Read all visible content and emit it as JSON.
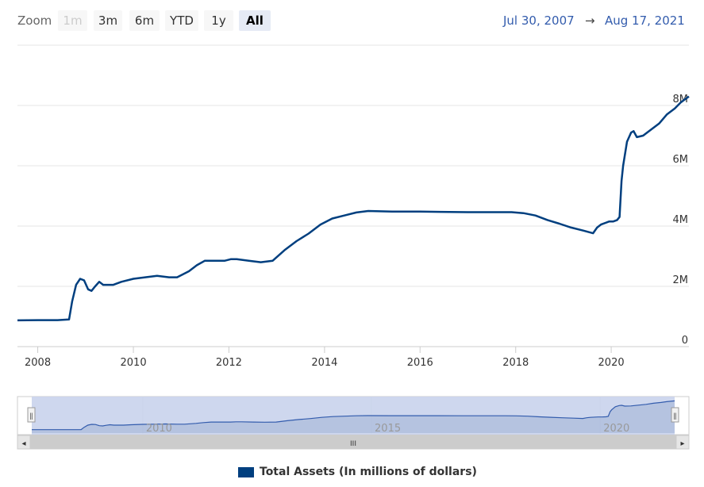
{
  "range_selector": {
    "zoom_label": "Zoom",
    "buttons": [
      {
        "label": "1m",
        "state": "disabled"
      },
      {
        "label": "3m",
        "state": "normal"
      },
      {
        "label": "6m",
        "state": "normal"
      },
      {
        "label": "YTD",
        "state": "normal"
      },
      {
        "label": "1y",
        "state": "normal"
      },
      {
        "label": "All",
        "state": "active"
      }
    ],
    "from_date": "Jul 30, 2007",
    "arrow": "→",
    "to_date": "Aug 17, 2021"
  },
  "navigator": {
    "tick_labels": [
      "2010",
      "2015",
      "2020"
    ],
    "handle_glyph": "ǁ",
    "scrollbar_grip": "III",
    "left_arrow": "◂",
    "right_arrow": "▸"
  },
  "colors": {
    "series": "#003f7f",
    "accent": "#335cad",
    "navigator_fill": "#c9d3ec"
  },
  "chart_data": {
    "type": "line",
    "series": [
      {
        "name": "Total Assets (In millions of dollars)",
        "x": [
          "2007-07-30",
          "2008-01-01",
          "2008-06-01",
          "2008-08-27",
          "2008-09-20",
          "2008-10-20",
          "2008-11-20",
          "2008-12-20",
          "2009-01-20",
          "2009-02-15",
          "2009-03-15",
          "2009-04-15",
          "2009-05-15",
          "2009-06-15",
          "2009-08-01",
          "2009-10-01",
          "2010-01-01",
          "2010-04-01",
          "2010-07-01",
          "2010-10-01",
          "2010-12-01",
          "2011-03-01",
          "2011-05-01",
          "2011-07-01",
          "2011-09-01",
          "2011-12-01",
          "2012-01-15",
          "2012-03-01",
          "2012-06-01",
          "2012-09-01",
          "2012-12-01",
          "2013-03-01",
          "2013-06-01",
          "2013-09-01",
          "2013-12-01",
          "2014-03-01",
          "2014-06-01",
          "2014-09-01",
          "2014-12-01",
          "2015-06-01",
          "2016-01-01",
          "2016-06-01",
          "2017-01-01",
          "2017-06-01",
          "2017-12-01",
          "2018-03-01",
          "2018-06-01",
          "2018-09-01",
          "2018-12-01",
          "2019-03-01",
          "2019-06-01",
          "2019-08-15",
          "2019-09-15",
          "2019-10-15",
          "2019-12-15",
          "2020-01-15",
          "2020-02-15",
          "2020-03-05",
          "2020-03-20",
          "2020-04-01",
          "2020-05-01",
          "2020-06-01",
          "2020-06-20",
          "2020-07-15",
          "2020-09-01",
          "2020-10-01",
          "2021-01-01",
          "2021-03-01",
          "2021-05-01",
          "2021-06-15",
          "2021-08-17"
        ],
        "values": [
          870000,
          880000,
          880000,
          900000,
          1500000,
          2050000,
          2250000,
          2200000,
          1900000,
          1850000,
          2000000,
          2150000,
          2050000,
          2050000,
          2050000,
          2150000,
          2250000,
          2300000,
          2350000,
          2300000,
          2300000,
          2500000,
          2700000,
          2850000,
          2850000,
          2850000,
          2900000,
          2900000,
          2850000,
          2800000,
          2850000,
          3200000,
          3500000,
          3750000,
          4050000,
          4250000,
          4350000,
          4450000,
          4500000,
          4480000,
          4480000,
          4470000,
          4460000,
          4460000,
          4460000,
          4430000,
          4350000,
          4200000,
          4080000,
          3950000,
          3850000,
          3760000,
          3950000,
          4050000,
          4150000,
          4150000,
          4200000,
          4300000,
          5500000,
          6000000,
          6800000,
          7100000,
          7150000,
          6950000,
          7000000,
          7100000,
          7400000,
          7700000,
          7900000,
          8100000,
          8300000
        ]
      }
    ],
    "x_ticks": [
      "2008",
      "2010",
      "2012",
      "2014",
      "2016",
      "2018",
      "2020"
    ],
    "y_ticks": [
      "0",
      "2M",
      "4M",
      "6M",
      "8M"
    ],
    "ylim": [
      0,
      10000000
    ],
    "xlim": [
      "2007-07-30",
      "2021-08-17"
    ],
    "grid": true,
    "legend": "bottom-center",
    "title": "",
    "xlabel": "",
    "ylabel": ""
  }
}
